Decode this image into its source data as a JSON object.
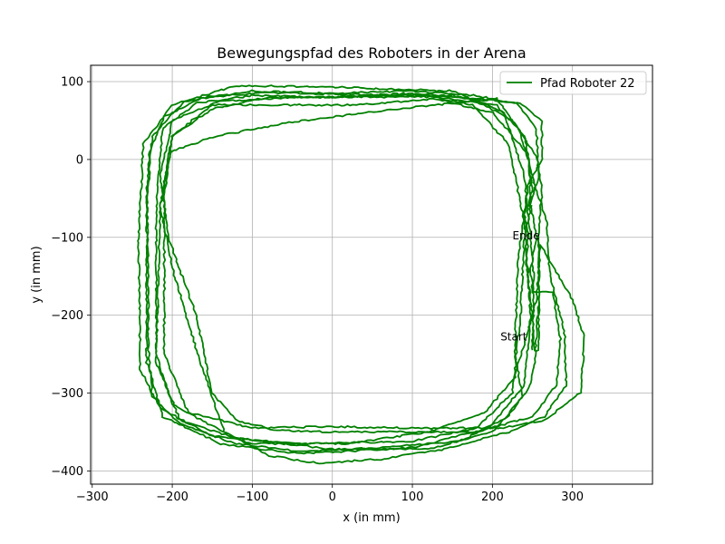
{
  "chart_data": {
    "type": "line",
    "title": "Bewegungspfad des Roboters in der Arena",
    "xlabel": "x (in mm)",
    "ylabel": "y (in mm)",
    "xlim": [
      -302,
      400
    ],
    "ylim": [
      -417,
      121
    ],
    "xticks": [
      -300,
      -200,
      -100,
      0,
      100,
      200,
      300
    ],
    "yticks": [
      -400,
      -300,
      -200,
      -100,
      0,
      100
    ],
    "grid": true,
    "legend_position": "top-right",
    "colors": {
      "series": "#008000",
      "grid": "#b0b0b0",
      "axis": "#000000"
    },
    "series": [
      {
        "name": "Pfad Roboter 22",
        "color": "#008000",
        "loops": [
          [
            [
              250,
              -245
            ],
            [
              252,
              -150
            ],
            [
              240,
              -20
            ],
            [
              215,
              60
            ],
            [
              150,
              88
            ],
            [
              0,
              93
            ],
            [
              -120,
              95
            ],
            [
              -200,
              70
            ],
            [
              -236,
              20
            ],
            [
              -242,
              -100
            ],
            [
              -240,
              -270
            ],
            [
              -215,
              -320
            ],
            [
              -150,
              -355
            ],
            [
              -50,
              -365
            ],
            [
              100,
              -362
            ],
            [
              180,
              -345
            ],
            [
              225,
              -300
            ],
            [
              235,
              -200
            ],
            [
              240,
              -100
            ],
            [
              248,
              -60
            ]
          ],
          [
            [
              246,
              -60
            ],
            [
              258,
              -20
            ],
            [
              255,
              40
            ],
            [
              230,
              72
            ],
            [
              180,
              82
            ],
            [
              100,
              88
            ],
            [
              0,
              85
            ],
            [
              -100,
              88
            ],
            [
              -185,
              75
            ],
            [
              -225,
              30
            ],
            [
              -232,
              -60
            ],
            [
              -232,
              -260
            ],
            [
              -212,
              -330
            ],
            [
              -140,
              -365
            ],
            [
              -40,
              -378
            ],
            [
              100,
              -370
            ],
            [
              195,
              -345
            ],
            [
              240,
              -290
            ],
            [
              248,
              -200
            ],
            [
              240,
              -80
            ]
          ],
          [
            [
              240,
              -80
            ],
            [
              220,
              20
            ],
            [
              175,
              70
            ],
            [
              100,
              85
            ],
            [
              0,
              80
            ],
            [
              -100,
              82
            ],
            [
              -170,
              72
            ],
            [
              -212,
              40
            ],
            [
              -220,
              -60
            ],
            [
              -220,
              -250
            ],
            [
              -200,
              -315
            ],
            [
              -120,
              -358
            ],
            [
              0,
              -372
            ],
            [
              120,
              -372
            ],
            [
              200,
              -350
            ],
            [
              238,
              -305
            ],
            [
              228,
              -250
            ],
            [
              232,
              -130
            ],
            [
              245,
              -30
            ]
          ],
          [
            [
              245,
              -30
            ],
            [
              262,
              0
            ],
            [
              262,
              50
            ],
            [
              235,
              72
            ],
            [
              180,
              78
            ],
            [
              120,
              84
            ],
            [
              0,
              80
            ],
            [
              -80,
              80
            ],
            [
              -150,
              65
            ],
            [
              -200,
              30
            ],
            [
              -215,
              -60
            ],
            [
              -220,
              -260
            ],
            [
              -190,
              -335
            ],
            [
              -100,
              -365
            ],
            [
              20,
              -365
            ],
            [
              120,
              -350
            ],
            [
              190,
              -325
            ],
            [
              228,
              -280
            ],
            [
              255,
              -180
            ],
            [
              260,
              -110
            ]
          ],
          [
            [
              260,
              -110
            ],
            [
              300,
              -180
            ],
            [
              315,
              -230
            ],
            [
              310,
              -300
            ],
            [
              265,
              -335
            ],
            [
              210,
              -345
            ],
            [
              100,
              -345
            ],
            [
              0,
              -343
            ],
            [
              -100,
              -345
            ],
            [
              -180,
              -325
            ],
            [
              -210,
              -250
            ],
            [
              -210,
              -50
            ],
            [
              -200,
              30
            ],
            [
              -150,
              70
            ],
            [
              -60,
              70
            ],
            [
              30,
              70
            ],
            [
              130,
              78
            ],
            [
              200,
              60
            ],
            [
              242,
              10
            ],
            [
              252,
              -30
            ]
          ],
          [
            [
              252,
              -30
            ],
            [
              268,
              -80
            ],
            [
              272,
              -150
            ],
            [
              290,
              -220
            ],
            [
              292,
              -290
            ],
            [
              265,
              -330
            ],
            [
              220,
              -350
            ],
            [
              140,
              -372
            ],
            [
              60,
              -385
            ],
            [
              -20,
              -390
            ],
            [
              -80,
              -380
            ],
            [
              -135,
              -350
            ],
            [
              -165,
              -260
            ],
            [
              -200,
              -140
            ],
            [
              -215,
              -60
            ],
            [
              -202,
              10
            ],
            [
              -145,
              30
            ],
            [
              -50,
              48
            ],
            [
              80,
              65
            ],
            [
              205,
              78
            ],
            [
              240,
              30
            ]
          ],
          [
            [
              240,
              30
            ],
            [
              246,
              0
            ],
            [
              248,
              -60
            ],
            [
              255,
              -100
            ],
            [
              248,
              -140
            ],
            [
              250,
              -170
            ]
          ],
          [
            [
              250,
              -170
            ],
            [
              275,
              -170
            ],
            [
              285,
              -230
            ],
            [
              280,
              -290
            ],
            [
              250,
              -330
            ],
            [
              180,
              -350
            ],
            [
              100,
              -350
            ],
            [
              0,
              -350
            ],
            [
              -70,
              -348
            ],
            [
              -120,
              -335
            ],
            [
              -150,
              -300
            ],
            [
              -170,
              -200
            ],
            [
              -205,
              -100
            ],
            [
              -215,
              -20
            ],
            [
              -200,
              50
            ],
            [
              -140,
              75
            ],
            [
              -40,
              80
            ],
            [
              60,
              80
            ],
            [
              150,
              82
            ],
            [
              205,
              70
            ],
            [
              232,
              40
            ],
            [
              245,
              0
            ],
            [
              250,
              -40
            ]
          ],
          [
            [
              250,
              -40
            ],
            [
              240,
              -70
            ],
            [
              245,
              -100
            ],
            [
              242,
              -130
            ],
            [
              247,
              -175
            ],
            [
              250,
              -200
            ],
            [
              252,
              -245
            ],
            [
              258,
              -245
            ],
            [
              258,
              -95
            ],
            [
              262,
              -40
            ],
            [
              255,
              5
            ],
            [
              225,
              50
            ],
            [
              185,
              72
            ],
            [
              130,
              80
            ],
            [
              60,
              83
            ],
            [
              0,
              84
            ],
            [
              -80,
              86
            ],
            [
              -160,
              80
            ],
            [
              -210,
              55
            ],
            [
              -228,
              10
            ],
            [
              -232,
              -40
            ],
            [
              -230,
              -150
            ],
            [
              -230,
              -240
            ],
            [
              -225,
              -305
            ],
            [
              -190,
              -340
            ],
            [
              -120,
              -365
            ],
            [
              -40,
              -375
            ],
            [
              60,
              -370
            ],
            [
              160,
              -362
            ],
            [
              220,
              -330
            ],
            [
              248,
              -290
            ],
            [
              253,
              -260
            ],
            [
              258,
              -175
            ],
            [
              258,
              -95
            ]
          ]
        ]
      }
    ],
    "annotations": [
      {
        "text": "Start",
        "x": 210,
        "y": -228
      },
      {
        "text": "Ende",
        "x": 225,
        "y": -98
      }
    ]
  }
}
